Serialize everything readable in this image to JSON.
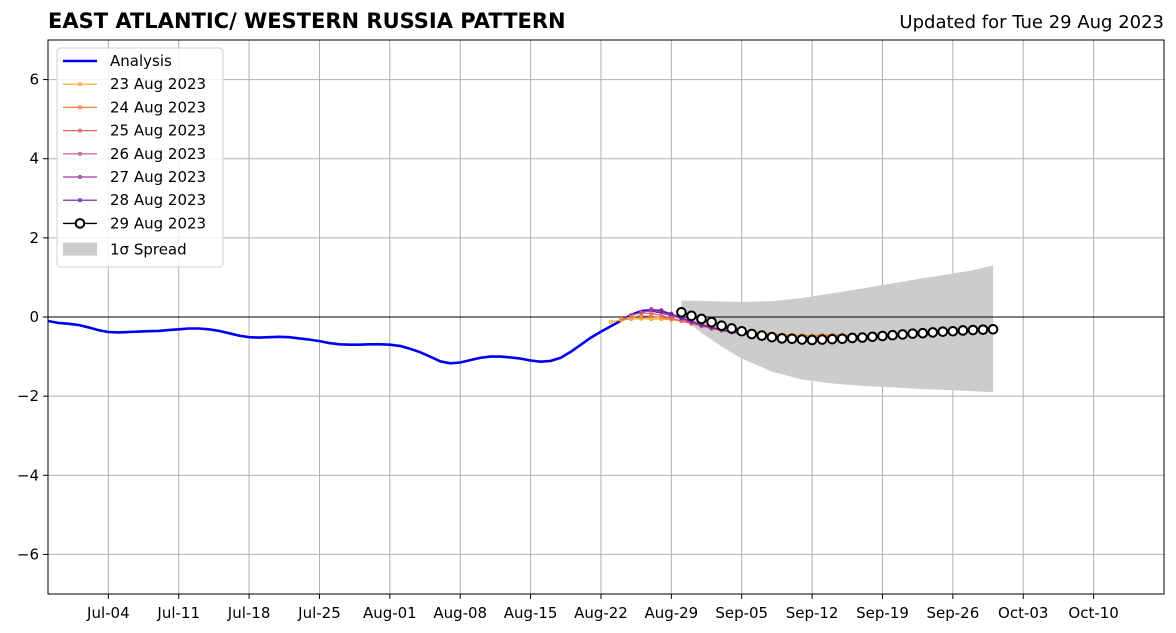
{
  "chart_data": {
    "type": "line",
    "title": "EAST ATLANTIC/ WESTERN RUSSIA PATTERN",
    "subtitle": "Updated for Tue 29 Aug 2023",
    "ylim": [
      -7,
      7
    ],
    "yticks": [
      -6,
      -4,
      -2,
      0,
      2,
      4,
      6
    ],
    "ytick_labels": [
      "−6",
      "−4",
      "−2",
      "0",
      "2",
      "4",
      "6"
    ],
    "xlim": [
      "2023-06-28",
      "2023-10-17"
    ],
    "xticks": [
      "2023-07-04",
      "2023-07-11",
      "2023-07-18",
      "2023-07-25",
      "2023-08-01",
      "2023-08-08",
      "2023-08-15",
      "2023-08-22",
      "2023-08-29",
      "2023-09-05",
      "2023-09-12",
      "2023-09-19",
      "2023-09-26",
      "2023-10-03",
      "2023-10-10"
    ],
    "xtick_labels": [
      "Jul-04",
      "Jul-11",
      "Jul-18",
      "Jul-25",
      "Aug-01",
      "Aug-08",
      "Aug-15",
      "Aug-22",
      "Aug-29",
      "Sep-05",
      "Sep-12",
      "Sep-19",
      "Sep-26",
      "Oct-03",
      "Oct-10"
    ],
    "grid": true,
    "legend_position": "top-left",
    "series": [
      {
        "name": "Analysis",
        "color": "#0000ee",
        "points": [
          [
            "2023-06-28",
            -0.1
          ],
          [
            "2023-06-29",
            -0.15
          ],
          [
            "2023-06-30",
            -0.17
          ],
          [
            "2023-07-01",
            -0.2
          ],
          [
            "2023-07-02",
            -0.26
          ],
          [
            "2023-07-03",
            -0.33
          ],
          [
            "2023-07-04",
            -0.38
          ],
          [
            "2023-07-05",
            -0.39
          ],
          [
            "2023-07-06",
            -0.38
          ],
          [
            "2023-07-07",
            -0.37
          ],
          [
            "2023-07-08",
            -0.36
          ],
          [
            "2023-07-09",
            -0.35
          ],
          [
            "2023-07-10",
            -0.33
          ],
          [
            "2023-07-11",
            -0.31
          ],
          [
            "2023-07-12",
            -0.29
          ],
          [
            "2023-07-13",
            -0.29
          ],
          [
            "2023-07-14",
            -0.31
          ],
          [
            "2023-07-15",
            -0.35
          ],
          [
            "2023-07-16",
            -0.41
          ],
          [
            "2023-07-17",
            -0.47
          ],
          [
            "2023-07-18",
            -0.51
          ],
          [
            "2023-07-19",
            -0.52
          ],
          [
            "2023-07-20",
            -0.51
          ],
          [
            "2023-07-21",
            -0.5
          ],
          [
            "2023-07-22",
            -0.51
          ],
          [
            "2023-07-23",
            -0.54
          ],
          [
            "2023-07-24",
            -0.57
          ],
          [
            "2023-07-25",
            -0.61
          ],
          [
            "2023-07-26",
            -0.66
          ],
          [
            "2023-07-27",
            -0.69
          ],
          [
            "2023-07-28",
            -0.7
          ],
          [
            "2023-07-29",
            -0.7
          ],
          [
            "2023-07-30",
            -0.69
          ],
          [
            "2023-07-31",
            -0.69
          ],
          [
            "2023-08-01",
            -0.7
          ],
          [
            "2023-08-02",
            -0.73
          ],
          [
            "2023-08-03",
            -0.8
          ],
          [
            "2023-08-04",
            -0.89
          ],
          [
            "2023-08-05",
            -1.0
          ],
          [
            "2023-08-06",
            -1.12
          ],
          [
            "2023-08-07",
            -1.17
          ],
          [
            "2023-08-08",
            -1.15
          ],
          [
            "2023-08-09",
            -1.09
          ],
          [
            "2023-08-10",
            -1.03
          ],
          [
            "2023-08-11",
            -1.0
          ],
          [
            "2023-08-12",
            -1.0
          ],
          [
            "2023-08-13",
            -1.02
          ],
          [
            "2023-08-14",
            -1.05
          ],
          [
            "2023-08-15",
            -1.1
          ],
          [
            "2023-08-16",
            -1.13
          ],
          [
            "2023-08-17",
            -1.11
          ],
          [
            "2023-08-18",
            -1.03
          ],
          [
            "2023-08-19",
            -0.88
          ],
          [
            "2023-08-20",
            -0.7
          ],
          [
            "2023-08-21",
            -0.52
          ],
          [
            "2023-08-22",
            -0.37
          ],
          [
            "2023-08-23",
            -0.23
          ],
          [
            "2023-08-24",
            -0.09
          ],
          [
            "2023-08-25",
            0.05
          ],
          [
            "2023-08-26",
            0.15
          ],
          [
            "2023-08-27",
            0.17
          ],
          [
            "2023-08-28",
            0.12
          ],
          [
            "2023-08-29",
            0.05
          ]
        ]
      },
      {
        "name": "23 Aug 2023",
        "color": "#f8a21e",
        "points": [
          [
            "2023-08-23",
            -0.12
          ],
          [
            "2023-08-24",
            -0.08
          ],
          [
            "2023-08-25",
            -0.05
          ],
          [
            "2023-08-26",
            -0.04
          ],
          [
            "2023-08-27",
            -0.05
          ],
          [
            "2023-08-28",
            -0.05
          ],
          [
            "2023-08-29",
            -0.07
          ],
          [
            "2023-08-30",
            -0.1
          ],
          [
            "2023-08-31",
            -0.15
          ],
          [
            "2023-09-01",
            -0.2
          ],
          [
            "2023-09-02",
            -0.25
          ],
          [
            "2023-09-03",
            -0.3
          ],
          [
            "2023-09-04",
            -0.33
          ],
          [
            "2023-09-05",
            -0.36
          ],
          [
            "2023-09-06",
            -0.38
          ],
          [
            "2023-09-07",
            -0.4
          ],
          [
            "2023-09-08",
            -0.42
          ],
          [
            "2023-09-09",
            -0.44
          ],
          [
            "2023-09-10",
            -0.45
          ],
          [
            "2023-09-11",
            -0.46
          ],
          [
            "2023-09-12",
            -0.46
          ],
          [
            "2023-09-13",
            -0.45
          ],
          [
            "2023-09-14",
            -0.45
          ]
        ]
      },
      {
        "name": "24 Aug 2023",
        "color": "#f0813a",
        "points": [
          [
            "2023-08-24",
            -0.05
          ],
          [
            "2023-08-25",
            0.0
          ],
          [
            "2023-08-26",
            0.03
          ],
          [
            "2023-08-27",
            0.02
          ],
          [
            "2023-08-28",
            -0.01
          ],
          [
            "2023-08-29",
            -0.05
          ],
          [
            "2023-08-30",
            -0.1
          ],
          [
            "2023-08-31",
            -0.16
          ],
          [
            "2023-09-01",
            -0.22
          ],
          [
            "2023-09-02",
            -0.27
          ],
          [
            "2023-09-03",
            -0.31
          ],
          [
            "2023-09-04",
            -0.35
          ],
          [
            "2023-09-05",
            -0.38
          ],
          [
            "2023-09-06",
            -0.41
          ],
          [
            "2023-09-07",
            -0.43
          ],
          [
            "2023-09-08",
            -0.45
          ],
          [
            "2023-09-09",
            -0.46
          ],
          [
            "2023-09-10",
            -0.47
          ],
          [
            "2023-09-11",
            -0.48
          ],
          [
            "2023-09-12",
            -0.48
          ],
          [
            "2023-09-13",
            -0.47
          ],
          [
            "2023-09-14",
            -0.46
          ],
          [
            "2023-09-15",
            -0.45
          ]
        ]
      },
      {
        "name": "25 Aug 2023",
        "color": "#e0606a",
        "points": [
          [
            "2023-08-25",
            0.05
          ],
          [
            "2023-08-26",
            0.1
          ],
          [
            "2023-08-27",
            0.09
          ],
          [
            "2023-08-28",
            0.04
          ],
          [
            "2023-08-29",
            -0.03
          ],
          [
            "2023-08-30",
            -0.1
          ],
          [
            "2023-08-31",
            -0.17
          ],
          [
            "2023-09-01",
            -0.23
          ],
          [
            "2023-09-02",
            -0.29
          ],
          [
            "2023-09-03",
            -0.34
          ],
          [
            "2023-09-04",
            -0.38
          ],
          [
            "2023-09-05",
            -0.41
          ],
          [
            "2023-09-06",
            -0.44
          ],
          [
            "2023-09-07",
            -0.46
          ],
          [
            "2023-09-08",
            -0.48
          ],
          [
            "2023-09-09",
            -0.49
          ],
          [
            "2023-09-10",
            -0.5
          ],
          [
            "2023-09-11",
            -0.5
          ],
          [
            "2023-09-12",
            -0.5
          ],
          [
            "2023-09-13",
            -0.49
          ],
          [
            "2023-09-14",
            -0.48
          ],
          [
            "2023-09-15",
            -0.47
          ],
          [
            "2023-09-16",
            -0.46
          ]
        ]
      },
      {
        "name": "26 Aug 2023",
        "color": "#c54a90",
        "points": [
          [
            "2023-08-26",
            0.12
          ],
          [
            "2023-08-27",
            0.17
          ],
          [
            "2023-08-28",
            0.12
          ],
          [
            "2023-08-29",
            0.04
          ],
          [
            "2023-08-30",
            -0.05
          ],
          [
            "2023-08-31",
            -0.14
          ],
          [
            "2023-09-01",
            -0.22
          ],
          [
            "2023-09-02",
            -0.29
          ],
          [
            "2023-09-03",
            -0.34
          ],
          [
            "2023-09-04",
            -0.39
          ],
          [
            "2023-09-05",
            -0.43
          ],
          [
            "2023-09-06",
            -0.46
          ],
          [
            "2023-09-07",
            -0.48
          ],
          [
            "2023-09-08",
            -0.5
          ],
          [
            "2023-09-09",
            -0.51
          ],
          [
            "2023-09-10",
            -0.52
          ],
          [
            "2023-09-11",
            -0.52
          ],
          [
            "2023-09-12",
            -0.52
          ],
          [
            "2023-09-13",
            -0.51
          ],
          [
            "2023-09-14",
            -0.5
          ],
          [
            "2023-09-15",
            -0.49
          ],
          [
            "2023-09-16",
            -0.48
          ],
          [
            "2023-09-17",
            -0.47
          ]
        ]
      },
      {
        "name": "27 Aug 2023",
        "color": "#a03aa8",
        "points": [
          [
            "2023-08-27",
            0.2
          ],
          [
            "2023-08-28",
            0.17
          ],
          [
            "2023-08-29",
            0.08
          ],
          [
            "2023-08-30",
            -0.02
          ],
          [
            "2023-08-31",
            -0.12
          ],
          [
            "2023-09-01",
            -0.2
          ],
          [
            "2023-09-02",
            -0.27
          ],
          [
            "2023-09-03",
            -0.33
          ],
          [
            "2023-09-04",
            -0.38
          ],
          [
            "2023-09-05",
            -0.42
          ],
          [
            "2023-09-06",
            -0.45
          ],
          [
            "2023-09-07",
            -0.48
          ],
          [
            "2023-09-08",
            -0.5
          ],
          [
            "2023-09-09",
            -0.52
          ],
          [
            "2023-09-10",
            -0.53
          ],
          [
            "2023-09-11",
            -0.54
          ],
          [
            "2023-09-12",
            -0.54
          ],
          [
            "2023-09-13",
            -0.53
          ],
          [
            "2023-09-14",
            -0.52
          ],
          [
            "2023-09-15",
            -0.51
          ],
          [
            "2023-09-16",
            -0.5
          ],
          [
            "2023-09-17",
            -0.49
          ],
          [
            "2023-09-18",
            -0.48
          ]
        ]
      },
      {
        "name": "28 Aug 2023",
        "color": "#6a1aa0",
        "points": [
          [
            "2023-08-28",
            0.15
          ],
          [
            "2023-08-29",
            0.08
          ],
          [
            "2023-08-30",
            -0.02
          ],
          [
            "2023-08-31",
            -0.11
          ],
          [
            "2023-09-01",
            -0.19
          ],
          [
            "2023-09-02",
            -0.26
          ],
          [
            "2023-09-03",
            -0.32
          ],
          [
            "2023-09-04",
            -0.37
          ],
          [
            "2023-09-05",
            -0.41
          ],
          [
            "2023-09-06",
            -0.45
          ],
          [
            "2023-09-07",
            -0.48
          ],
          [
            "2023-09-08",
            -0.5
          ],
          [
            "2023-09-09",
            -0.52
          ],
          [
            "2023-09-10",
            -0.54
          ],
          [
            "2023-09-11",
            -0.55
          ],
          [
            "2023-09-12",
            -0.56
          ],
          [
            "2023-09-13",
            -0.56
          ],
          [
            "2023-09-14",
            -0.55
          ],
          [
            "2023-09-15",
            -0.54
          ],
          [
            "2023-09-16",
            -0.53
          ],
          [
            "2023-09-17",
            -0.52
          ],
          [
            "2023-09-18",
            -0.51
          ],
          [
            "2023-09-19",
            -0.5
          ]
        ]
      },
      {
        "name": "29 Aug 2023",
        "color": "#000000",
        "points": [
          [
            "2023-08-30",
            0.12
          ],
          [
            "2023-08-31",
            0.03
          ],
          [
            "2023-09-01",
            -0.05
          ],
          [
            "2023-09-02",
            -0.13
          ],
          [
            "2023-09-03",
            -0.22
          ],
          [
            "2023-09-04",
            -0.29
          ],
          [
            "2023-09-05",
            -0.36
          ],
          [
            "2023-09-06",
            -0.43
          ],
          [
            "2023-09-07",
            -0.47
          ],
          [
            "2023-09-08",
            -0.51
          ],
          [
            "2023-09-09",
            -0.54
          ],
          [
            "2023-09-10",
            -0.55
          ],
          [
            "2023-09-11",
            -0.57
          ],
          [
            "2023-09-12",
            -0.58
          ],
          [
            "2023-09-13",
            -0.57
          ],
          [
            "2023-09-14",
            -0.56
          ],
          [
            "2023-09-15",
            -0.55
          ],
          [
            "2023-09-16",
            -0.53
          ],
          [
            "2023-09-17",
            -0.52
          ],
          [
            "2023-09-18",
            -0.5
          ],
          [
            "2023-09-19",
            -0.48
          ],
          [
            "2023-09-20",
            -0.46
          ],
          [
            "2023-09-21",
            -0.44
          ],
          [
            "2023-09-22",
            -0.42
          ],
          [
            "2023-09-23",
            -0.41
          ],
          [
            "2023-09-24",
            -0.39
          ],
          [
            "2023-09-25",
            -0.37
          ],
          [
            "2023-09-26",
            -0.36
          ],
          [
            "2023-09-27",
            -0.34
          ],
          [
            "2023-09-28",
            -0.33
          ],
          [
            "2023-09-29",
            -0.32
          ],
          [
            "2023-09-30",
            -0.31
          ]
        ]
      }
    ],
    "spread": {
      "name": "1σ Spread",
      "color": "#cccccc",
      "upper": [
        [
          "2023-08-30",
          0.42
        ],
        [
          "2023-09-02",
          0.4
        ],
        [
          "2023-09-05",
          0.38
        ],
        [
          "2023-09-08",
          0.4
        ],
        [
          "2023-09-11",
          0.48
        ],
        [
          "2023-09-14",
          0.6
        ],
        [
          "2023-09-17",
          0.72
        ],
        [
          "2023-09-20",
          0.85
        ],
        [
          "2023-09-23",
          0.98
        ],
        [
          "2023-09-26",
          1.1
        ],
        [
          "2023-09-28",
          1.18
        ],
        [
          "2023-09-30",
          1.3
        ]
      ],
      "lower": [
        [
          "2023-08-30",
          0.0
        ],
        [
          "2023-09-01",
          -0.4
        ],
        [
          "2023-09-03",
          -0.75
        ],
        [
          "2023-09-05",
          -1.05
        ],
        [
          "2023-09-08",
          -1.38
        ],
        [
          "2023-09-11",
          -1.58
        ],
        [
          "2023-09-14",
          -1.68
        ],
        [
          "2023-09-17",
          -1.74
        ],
        [
          "2023-09-20",
          -1.78
        ],
        [
          "2023-09-23",
          -1.82
        ],
        [
          "2023-09-26",
          -1.85
        ],
        [
          "2023-09-30",
          -1.9
        ]
      ]
    }
  }
}
